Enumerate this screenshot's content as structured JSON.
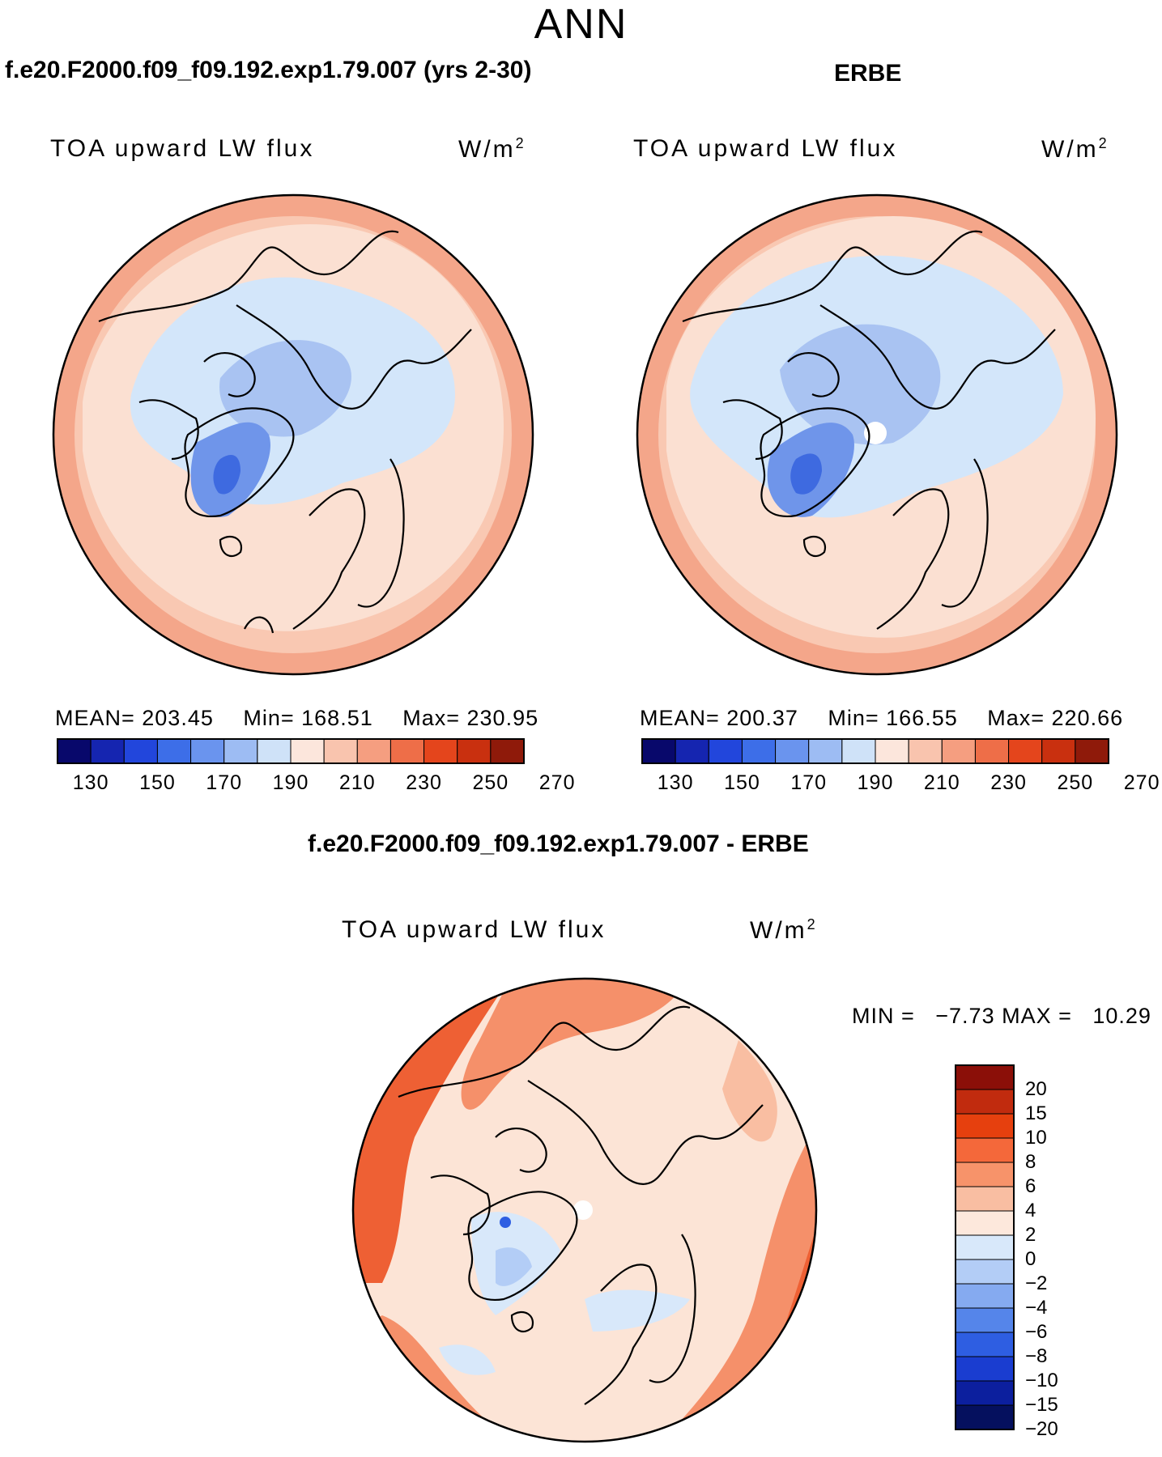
{
  "season": "ANN",
  "panels": {
    "model": {
      "title": "f.e20.F2000.f09_f09.192.exp1.79.007 (yrs 2-30)",
      "variable": "TOA upward LW flux",
      "units": "W/m",
      "units_sup": "2",
      "mean": "MEAN= 203.45",
      "min": "Min= 168.51",
      "max": "Max= 230.95"
    },
    "obs": {
      "title": "ERBE",
      "variable": "TOA upward LW flux",
      "units": "W/m",
      "units_sup": "2",
      "mean": "MEAN= 200.37",
      "min": "Min= 166.55",
      "max": "Max= 220.66"
    },
    "diff": {
      "title": "f.e20.F2000.f09_f09.192.exp1.79.007 - ERBE",
      "variable": "TOA upward LW flux",
      "units": "W/m",
      "units_sup": "2",
      "minmax": "MIN =   −7.73 MAX =   10.29"
    }
  },
  "colorbar_top": {
    "colors": [
      "#08086b",
      "#1525b0",
      "#2246dc",
      "#3d6ee8",
      "#6a94ee",
      "#9dbcf3",
      "#cfe2f8",
      "#fce6dc",
      "#f9c4ae",
      "#f59e80",
      "#ee6e48",
      "#e4451c",
      "#c9300f",
      "#8f1a0a"
    ],
    "tick_labels": [
      "130",
      "150",
      "170",
      "190",
      "210",
      "230",
      "250",
      "270"
    ]
  },
  "colorbar_diff": {
    "colors_top_to_bottom": [
      "#8b0f08",
      "#c12b0e",
      "#e6400e",
      "#f4683a",
      "#f7936a",
      "#f9bea2",
      "#fde8dc",
      "#d8e8fa",
      "#b3cdf6",
      "#85aaf0",
      "#5585ea",
      "#2e5ee2",
      "#1a3dd0",
      "#0c1f9e",
      "#05105e"
    ],
    "labels": [
      "20",
      "15",
      "10",
      "8",
      "6",
      "4",
      "2",
      "0",
      "−2",
      "−4",
      "−6",
      "−8",
      "−10",
      "−15",
      "−20"
    ]
  },
  "map_colors": {
    "ocean_warm": "#fbe0d2",
    "cold_1": "#d3e6fa",
    "cold_2": "#a9c3f2",
    "cold_3": "#6f95ea",
    "cold_4": "#3e6ae0",
    "warm_1": "#f9c8b2",
    "warm_2": "#f4a68a",
    "diff_base": "#fce4d6",
    "diff_warm": "#f5906a",
    "diff_hot": "#ee6034",
    "missing": "#ffffff"
  }
}
